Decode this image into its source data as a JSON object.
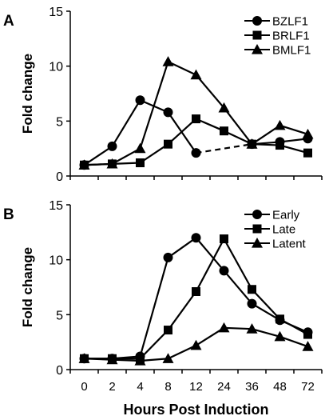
{
  "chart_data": [
    {
      "panel": "A",
      "type": "line",
      "ylabel": "Fold change",
      "xlabel": "",
      "categories": [
        "0",
        "2",
        "4",
        "8",
        "12",
        "24",
        "36",
        "48",
        "72"
      ],
      "ylim": [
        0,
        15
      ],
      "yticks": [
        0,
        5,
        10,
        15
      ],
      "legend_position": "top-right",
      "series": [
        {
          "name": "BZLF1",
          "marker": "circle",
          "values": [
            1.0,
            2.7,
            6.9,
            5.8,
            2.1,
            null,
            2.9,
            3.1,
            3.4
          ],
          "dashed_gap": {
            "from_index": 4,
            "to_index": 6
          }
        },
        {
          "name": "BRLF1",
          "marker": "square",
          "values": [
            1.0,
            1.1,
            1.2,
            2.9,
            5.2,
            4.1,
            2.9,
            2.8,
            2.1
          ]
        },
        {
          "name": "BMLF1",
          "marker": "triangle",
          "values": [
            1.0,
            1.1,
            2.5,
            10.4,
            9.2,
            6.2,
            2.9,
            4.6,
            3.8
          ]
        }
      ]
    },
    {
      "panel": "B",
      "type": "line",
      "ylabel": "Fold change",
      "xlabel": "Hours Post Induction",
      "categories": [
        "0",
        "2",
        "4",
        "8",
        "12",
        "24",
        "36",
        "48",
        "72"
      ],
      "ylim": [
        0,
        15
      ],
      "yticks": [
        0,
        5,
        10,
        15
      ],
      "legend_position": "top-right",
      "series": [
        {
          "name": "Early",
          "marker": "circle",
          "values": [
            1.0,
            1.0,
            1.2,
            10.2,
            12.0,
            9.0,
            6.0,
            4.5,
            3.4
          ]
        },
        {
          "name": "Late",
          "marker": "square",
          "values": [
            1.0,
            1.0,
            1.0,
            3.6,
            7.1,
            11.9,
            7.3,
            4.6,
            3.2
          ]
        },
        {
          "name": "Latent",
          "marker": "triangle",
          "values": [
            1.0,
            0.9,
            0.8,
            1.0,
            2.2,
            3.8,
            3.7,
            3.0,
            2.1
          ]
        }
      ]
    }
  ]
}
